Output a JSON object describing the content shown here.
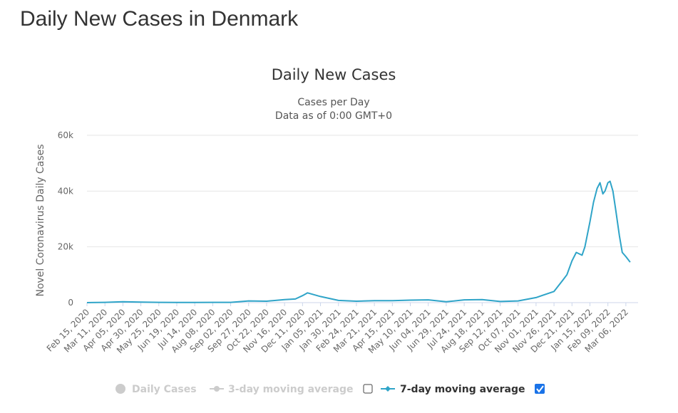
{
  "page": {
    "heading": "Daily New Cases in Denmark"
  },
  "legend": {
    "items": [
      {
        "label": "Daily Cases",
        "active": false
      },
      {
        "label": "3-day moving average",
        "active": false,
        "checked": false
      },
      {
        "label": "7-day moving average",
        "active": true,
        "checked": true
      }
    ],
    "colors": {
      "inactive": "#cccccc",
      "series": "#2fa4c8",
      "text": "#333333",
      "checkbox": "#1a73e8"
    }
  },
  "chart_data": {
    "type": "line",
    "title": "Daily New Cases",
    "subtitle_lines": [
      "Cases per Day",
      "Data as of 0:00 GMT+0"
    ],
    "ylabel": "Novel Coronavirus Daily Cases",
    "xlabel": "",
    "ylim": [
      0,
      60000
    ],
    "y_ticks": [
      0,
      20000,
      40000,
      60000
    ],
    "y_tick_labels": [
      "0",
      "20k",
      "40k",
      "60k"
    ],
    "x_range": [
      "2020-02-15",
      "2022-03-23"
    ],
    "x_tick_labels": [
      "Feb 15, 2020",
      "Mar 11, 2020",
      "Apr 05, 2020",
      "Apr 30, 2020",
      "May 25, 2020",
      "Jun 19, 2020",
      "Jul 14, 2020",
      "Aug 08, 2020",
      "Sep 02, 2020",
      "Sep 27, 2020",
      "Oct 22, 2020",
      "Nov 16, 2020",
      "Dec 11, 2020",
      "Jan 05, 2021",
      "Jan 30, 2021",
      "Feb 24, 2021",
      "Mar 21, 2021",
      "Apr 15, 2021",
      "May 10, 2021",
      "Jun 04, 2021",
      "Jun 29, 2021",
      "Jul 24, 2021",
      "Aug 18, 2021",
      "Sep 12, 2021",
      "Oct 07, 2021",
      "Nov 01, 2021",
      "Nov 26, 2021",
      "Dec 21, 2021",
      "Jan 15, 2022",
      "Feb 09, 2022",
      "Mar 06, 2022"
    ],
    "grid": true,
    "legend_position": "bottom",
    "series": [
      {
        "name": "7-day moving average",
        "color": "#2fa4c8",
        "points": [
          [
            "2020-02-15",
            0
          ],
          [
            "2020-03-11",
            100
          ],
          [
            "2020-04-05",
            300
          ],
          [
            "2020-04-30",
            200
          ],
          [
            "2020-05-25",
            100
          ],
          [
            "2020-06-19",
            50
          ],
          [
            "2020-07-14",
            50
          ],
          [
            "2020-08-08",
            100
          ],
          [
            "2020-09-02",
            100
          ],
          [
            "2020-09-27",
            600
          ],
          [
            "2020-10-22",
            500
          ],
          [
            "2020-11-16",
            1100
          ],
          [
            "2020-12-01",
            1300
          ],
          [
            "2020-12-11",
            2500
          ],
          [
            "2020-12-18",
            3500
          ],
          [
            "2020-12-25",
            3000
          ],
          [
            "2021-01-05",
            2200
          ],
          [
            "2021-01-30",
            800
          ],
          [
            "2021-02-24",
            500
          ],
          [
            "2021-03-21",
            700
          ],
          [
            "2021-04-15",
            700
          ],
          [
            "2021-05-10",
            900
          ],
          [
            "2021-06-04",
            1000
          ],
          [
            "2021-06-29",
            300
          ],
          [
            "2021-07-24",
            1000
          ],
          [
            "2021-08-18",
            1100
          ],
          [
            "2021-09-12",
            400
          ],
          [
            "2021-10-07",
            600
          ],
          [
            "2021-11-01",
            1800
          ],
          [
            "2021-11-26",
            4000
          ],
          [
            "2021-12-08",
            8000
          ],
          [
            "2021-12-14",
            10000
          ],
          [
            "2021-12-21",
            15000
          ],
          [
            "2021-12-27",
            18000
          ],
          [
            "2022-01-04",
            17000
          ],
          [
            "2022-01-08",
            20000
          ],
          [
            "2022-01-15",
            29000
          ],
          [
            "2022-01-20",
            36000
          ],
          [
            "2022-01-25",
            41000
          ],
          [
            "2022-01-29",
            43000
          ],
          [
            "2022-02-02",
            39000
          ],
          [
            "2022-02-05",
            40000
          ],
          [
            "2022-02-09",
            43000
          ],
          [
            "2022-02-12",
            43500
          ],
          [
            "2022-02-16",
            40000
          ],
          [
            "2022-02-20",
            33000
          ],
          [
            "2022-02-25",
            24000
          ],
          [
            "2022-03-01",
            18000
          ],
          [
            "2022-03-06",
            16500
          ],
          [
            "2022-03-12",
            14500
          ]
        ]
      }
    ]
  }
}
